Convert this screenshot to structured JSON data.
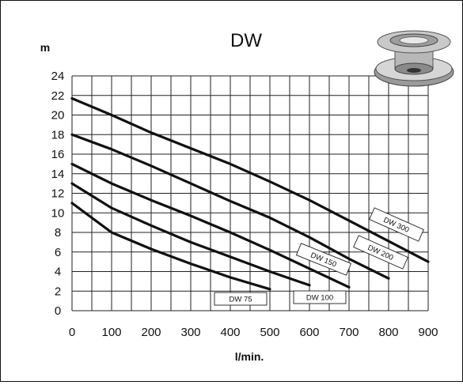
{
  "chart_data": {
    "type": "line",
    "title": "DW",
    "ylabel": "m",
    "xlabel": "l/min.",
    "xlim": [
      0,
      900
    ],
    "ylim": [
      0,
      24
    ],
    "x_ticks": [
      "0",
      "100",
      "200",
      "300",
      "400",
      "500",
      "600",
      "700",
      "800",
      "900"
    ],
    "y_ticks": [
      "0",
      "2",
      "4",
      "6",
      "8",
      "10",
      "12",
      "14",
      "16",
      "18",
      "20",
      "22",
      "24"
    ],
    "grid": true,
    "series": [
      {
        "name": "DW 75",
        "x": [
          0,
          100,
          200,
          300,
          400,
          500
        ],
        "y": [
          11,
          8,
          6.3,
          4.8,
          3.4,
          2.2
        ]
      },
      {
        "name": "DW 100",
        "x": [
          0,
          100,
          200,
          300,
          400,
          500,
          600
        ],
        "y": [
          13,
          10.5,
          8.7,
          7.0,
          5.5,
          4.0,
          2.6
        ]
      },
      {
        "name": "DW 150",
        "x": [
          0,
          100,
          200,
          300,
          400,
          500,
          600,
          700
        ],
        "y": [
          15,
          13,
          11.3,
          9.7,
          8.0,
          6.2,
          4.3,
          2.4
        ]
      },
      {
        "name": "DW 200",
        "x": [
          0,
          100,
          200,
          300,
          400,
          500,
          600,
          700,
          800
        ],
        "y": [
          18,
          16.5,
          14.8,
          13.0,
          11.2,
          9.5,
          7.5,
          5.3,
          3.3
        ]
      },
      {
        "name": "DW 300",
        "x": [
          0,
          100,
          200,
          300,
          400,
          500,
          600,
          700,
          800,
          900
        ],
        "y": [
          21.7,
          20.0,
          18.2,
          16.6,
          15.0,
          13.2,
          11.3,
          9.2,
          7.1,
          5.0
        ]
      }
    ],
    "series_labels": [
      "DW 75",
      "DW 100",
      "DW 150",
      "DW 200",
      "DW 300"
    ]
  },
  "icons": {
    "product": "pump-product-photo"
  }
}
